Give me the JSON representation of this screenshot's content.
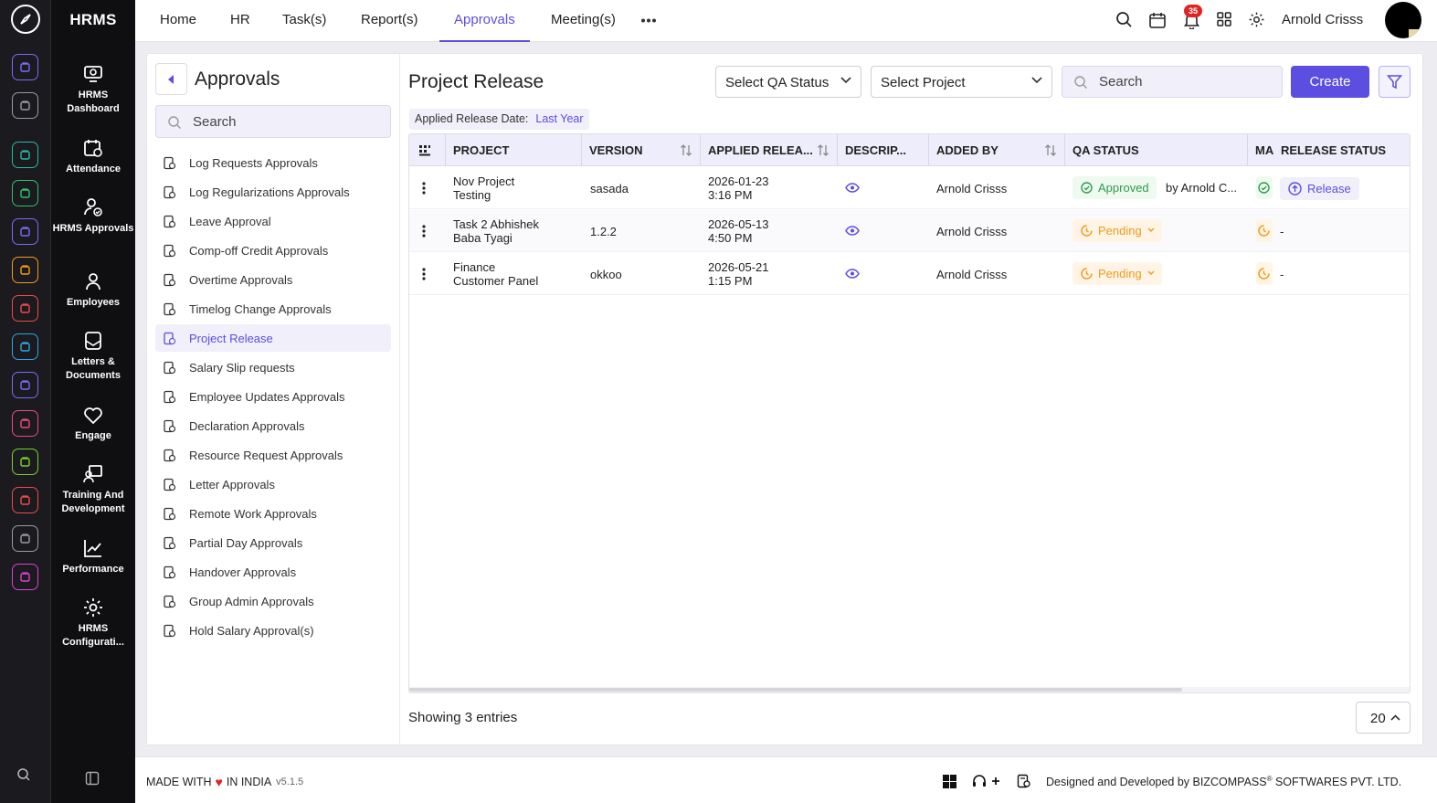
{
  "app": {
    "brand": "HRMS"
  },
  "topnav": {
    "tabs": [
      "Home",
      "HR",
      "Task(s)",
      "Report(s)",
      "Approvals",
      "Meeting(s)"
    ],
    "active_tab": "Approvals",
    "notification_count": "35",
    "user_name": "Arnold Crisss"
  },
  "sidenav": [
    {
      "label": "HRMS Dashboard",
      "icon": "dashboard-icon"
    },
    {
      "label": "Attendance",
      "icon": "attendance-icon"
    },
    {
      "label": "HRMS Approvals",
      "icon": "approvals-icon"
    },
    {
      "label": "Employees",
      "icon": "employees-icon"
    },
    {
      "label": "Letters & Documents",
      "icon": "letters-icon"
    },
    {
      "label": "Engage",
      "icon": "engage-icon"
    },
    {
      "label": "Training And Development",
      "icon": "training-icon"
    },
    {
      "label": "Performance",
      "icon": "performance-icon"
    },
    {
      "label": "HRMS Configurati...",
      "icon": "gear-icon"
    }
  ],
  "rail_colors": [
    "#7b6cf6",
    "#9a9aa3",
    "#2bb7a6",
    "#2fc26a",
    "#7b6cf6",
    "#f39c1a",
    "#ef4a4a",
    "#2ea8e0",
    "#7b6cf6",
    "#ef4a7a",
    "#7bd12f",
    "#ef4a4a",
    "#9a9aa3",
    "#e040d0"
  ],
  "subnav": {
    "title": "Approvals",
    "search_placeholder": "Search",
    "items": [
      "Log Requests Approvals",
      "Log Regularizations Approvals",
      "Leave Approval",
      "Comp-off Credit Approvals",
      "Overtime Approvals",
      "Timelog Change Approvals",
      "Project Release",
      "Salary Slip requests",
      "Employee Updates Approvals",
      "Declaration Approvals",
      "Resource Request Approvals",
      "Letter Approvals",
      "Remote Work Approvals",
      "Partial Day Approvals",
      "Handover Approvals",
      "Group Admin Approvals",
      "Hold Salary Approval(s)"
    ],
    "active_item": "Project Release"
  },
  "main": {
    "title": "Project Release",
    "qa_status_select": "Select QA Status",
    "project_select": "Select Project",
    "search_placeholder": "Search",
    "create_label": "Create",
    "chip_label": "Applied Release Date:",
    "chip_value": "Last Year",
    "columns": [
      "PROJECT",
      "VERSION",
      "APPLIED RELEA...",
      "DESCRIP...",
      "ADDED BY",
      "QA STATUS",
      "MA",
      "RELEASE STATUS"
    ],
    "rows": [
      {
        "project_1": "Nov Project",
        "project_2": "Testing",
        "version": "sasada",
        "date": "2026-01-23",
        "time": "3:16 PM",
        "added_by": "Arnold Crisss",
        "qa_status": "Approved",
        "qa_by": "by Arnold C...",
        "ma": "approved",
        "release": "Release"
      },
      {
        "project_1": "Task 2 Abhishek",
        "project_2": "Baba Tyagi",
        "version": "1.2.2",
        "date": "2026-05-13",
        "time": "4:50 PM",
        "added_by": "Arnold Crisss",
        "qa_status": "Pending",
        "qa_by": "",
        "ma": "pending",
        "release": "-"
      },
      {
        "project_1": "Finance",
        "project_2": "Customer Panel",
        "version": "okkoo",
        "date": "2026-05-21",
        "time": "1:15 PM",
        "added_by": "Arnold Crisss",
        "qa_status": "Pending",
        "qa_by": "",
        "ma": "pending",
        "release": "-"
      }
    ],
    "showing": "Showing 3 entries",
    "page_size": "20"
  },
  "footer": {
    "made_with": "MADE WITH",
    "in_india": "IN INDIA",
    "version": "v5.1.5",
    "designed": "Designed and Developed by",
    "company": "BIZCOMPASS",
    "reg": "®",
    "company_suffix": "SOFTWARES PVT. LTD."
  },
  "colors": {
    "accent": "#5b4ee0",
    "approved": "#2e9e4a",
    "pending": "#f09a1a",
    "badge": "#e02424"
  }
}
